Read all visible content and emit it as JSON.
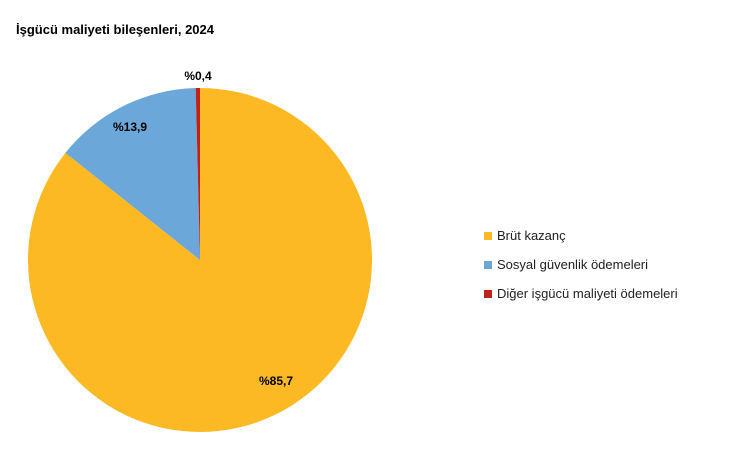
{
  "chart_data": {
    "type": "pie",
    "title": "İşgücü maliyeti bileşenleri, 2024",
    "legend_position": "right",
    "slices": [
      {
        "name": "Brüt kazanç",
        "value": 85.7,
        "label": "%85,7",
        "color": "#FDB924"
      },
      {
        "name": "Sosyal güvenlik ödemeleri",
        "value": 13.9,
        "label": "%13,9",
        "color": "#6BA7D8"
      },
      {
        "name": "Diğer işgücü maliyeti ödemeleri",
        "value": 0.4,
        "label": "%0,4",
        "color": "#C0221A"
      }
    ]
  }
}
